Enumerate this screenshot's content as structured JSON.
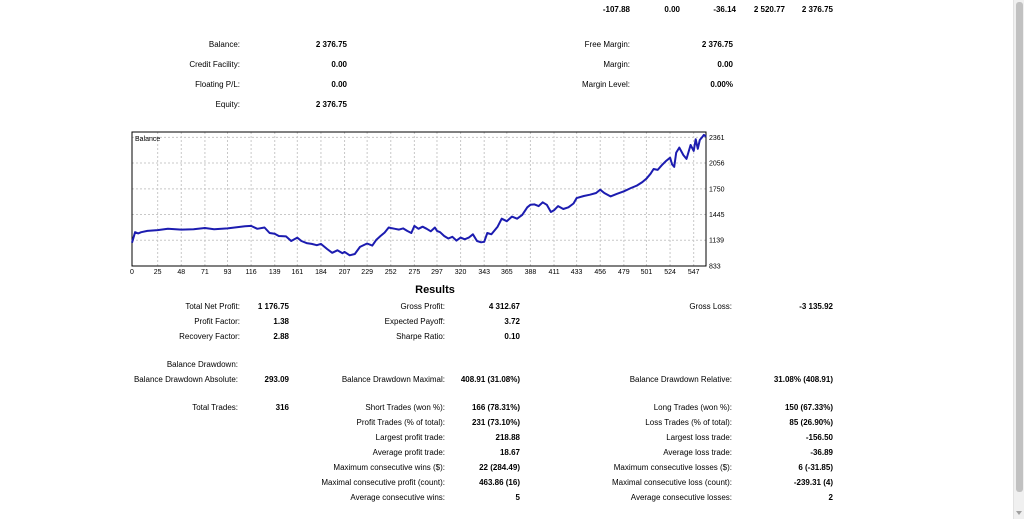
{
  "top_row": [
    "-107.88",
    "0.00",
    "-36.14",
    "2 520.77",
    "2 376.75"
  ],
  "account": {
    "left": [
      {
        "label": "Balance:",
        "value": "2 376.75"
      },
      {
        "label": "Credit Facility:",
        "value": "0.00"
      },
      {
        "label": "Floating P/L:",
        "value": "0.00"
      },
      {
        "label": "Equity:",
        "value": "2 376.75"
      }
    ],
    "right": [
      {
        "label": "Free Margin:",
        "value": "2 376.75"
      },
      {
        "label": "Margin:",
        "value": "0.00"
      },
      {
        "label": "Margin Level:",
        "value": "0.00%"
      }
    ]
  },
  "chart_data": {
    "type": "line",
    "title": "Balance",
    "xlabel": "",
    "ylabel": "",
    "grid": true,
    "line_color": "#1c1cb0",
    "xlim": [
      0,
      559
    ],
    "ylim": [
      833,
      2425
    ],
    "x_ticks": [
      "0",
      "25",
      "48",
      "71",
      "93",
      "116",
      "139",
      "161",
      "184",
      "207",
      "229",
      "252",
      "275",
      "297",
      "320",
      "343",
      "365",
      "388",
      "411",
      "433",
      "456",
      "479",
      "501",
      "524",
      "547"
    ],
    "y_ticks": [
      "2361",
      "2056",
      "1750",
      "1445",
      "1139",
      "833"
    ],
    "series": [
      {
        "x": [
          0,
          3,
          6,
          9,
          15,
          25,
          35,
          48,
          60,
          71,
          80,
          93,
          100,
          110,
          116,
          122,
          129,
          134,
          139,
          143,
          150,
          155,
          161,
          165,
          170,
          175,
          180,
          184,
          190,
          195,
          200,
          205,
          207,
          212,
          217,
          222,
          229,
          234,
          238,
          242,
          246,
          250,
          252,
          256,
          260,
          264,
          268,
          272,
          275,
          279,
          283,
          287,
          291,
          295,
          297,
          300,
          304,
          308,
          312,
          316,
          320,
          324,
          328,
          332,
          336,
          340,
          343,
          346,
          350,
          356,
          360,
          365,
          370,
          375,
          380,
          385,
          388,
          392,
          396,
          400,
          404,
          408,
          411,
          415,
          420,
          425,
          430,
          433,
          440,
          446,
          452,
          456,
          460,
          466,
          472,
          479,
          486,
          492,
          497,
          501,
          505,
          508,
          512,
          516,
          520,
          524,
          526,
          528,
          530,
          533,
          537,
          540,
          544,
          547,
          549,
          551,
          553,
          555,
          557,
          559
        ],
        "values": [
          1110,
          1235,
          1220,
          1235,
          1250,
          1260,
          1275,
          1265,
          1270,
          1285,
          1270,
          1280,
          1290,
          1305,
          1310,
          1275,
          1290,
          1225,
          1215,
          1190,
          1185,
          1130,
          1170,
          1130,
          1105,
          1095,
          1080,
          1095,
          1035,
          990,
          1020,
          985,
          1000,
          960,
          975,
          1060,
          1100,
          1075,
          1145,
          1190,
          1230,
          1290,
          1285,
          1275,
          1265,
          1280,
          1250,
          1225,
          1310,
          1275,
          1300,
          1275,
          1245,
          1290,
          1250,
          1235,
          1190,
          1160,
          1180,
          1135,
          1170,
          1150,
          1170,
          1210,
          1130,
          1115,
          1120,
          1225,
          1210,
          1300,
          1395,
          1365,
          1420,
          1395,
          1440,
          1530,
          1560,
          1565,
          1545,
          1590,
          1560,
          1475,
          1495,
          1545,
          1510,
          1530,
          1575,
          1640,
          1665,
          1680,
          1700,
          1740,
          1700,
          1660,
          1690,
          1720,
          1760,
          1790,
          1830,
          1870,
          1930,
          1985,
          1975,
          2030,
          2080,
          2120,
          2040,
          2010,
          2180,
          2240,
          2150,
          2105,
          2270,
          2200,
          2340,
          2225,
          2330,
          2360,
          2390,
          2370
        ]
      }
    ]
  },
  "results": {
    "title": "Results",
    "col1": [
      {
        "label": "Total Net Profit:",
        "value": "1 176.75"
      },
      {
        "label": "Profit Factor:",
        "value": "1.38"
      },
      {
        "label": "Recovery Factor:",
        "value": "2.88"
      }
    ],
    "col2": [
      {
        "label": "Gross Profit:",
        "value": "4 312.67"
      },
      {
        "label": "Expected Payoff:",
        "value": "3.72"
      },
      {
        "label": "Sharpe Ratio:",
        "value": "0.10"
      }
    ],
    "gross_loss": {
      "label": "Gross Loss:",
      "value": "-3 135.92"
    },
    "balance_drawdown_label": "Balance Drawdown:",
    "drawdown": {
      "absolute": {
        "label": "Balance Drawdown Absolute:",
        "value": "293.09"
      },
      "maximal": {
        "label": "Balance Drawdown Maximal:",
        "value": "408.91 (31.08%)"
      },
      "relative": {
        "label": "Balance Drawdown Relative:",
        "value": "31.08% (408.91)"
      }
    },
    "total_trades": {
      "label": "Total Trades:",
      "value": "316"
    },
    "mid_trades": [
      {
        "label": "Short Trades (won %):",
        "value": "166 (78.31%)"
      },
      {
        "label": "Profit Trades (% of total):",
        "value": "231 (73.10%)"
      },
      {
        "label": "Largest profit trade:",
        "value": "218.88"
      },
      {
        "label": "Average profit trade:",
        "value": "18.67"
      },
      {
        "label": "Maximum consecutive wins ($):",
        "value": "22 (284.49)"
      },
      {
        "label": "Maximal consecutive profit (count):",
        "value": "463.86 (16)"
      },
      {
        "label": "Average consecutive wins:",
        "value": "5"
      }
    ],
    "right_trades": [
      {
        "label": "Long Trades (won %):",
        "value": "150 (67.33%)"
      },
      {
        "label": "Loss Trades (% of total):",
        "value": "85 (26.90%)"
      },
      {
        "label": "Largest loss trade:",
        "value": "-156.50"
      },
      {
        "label": "Average loss trade:",
        "value": "-36.89"
      },
      {
        "label": "Maximum consecutive losses ($):",
        "value": "6 (-31.85)"
      },
      {
        "label": "Maximal consecutive loss (count):",
        "value": "-239.31 (4)"
      },
      {
        "label": "Average consecutive losses:",
        "value": "2"
      }
    ]
  }
}
